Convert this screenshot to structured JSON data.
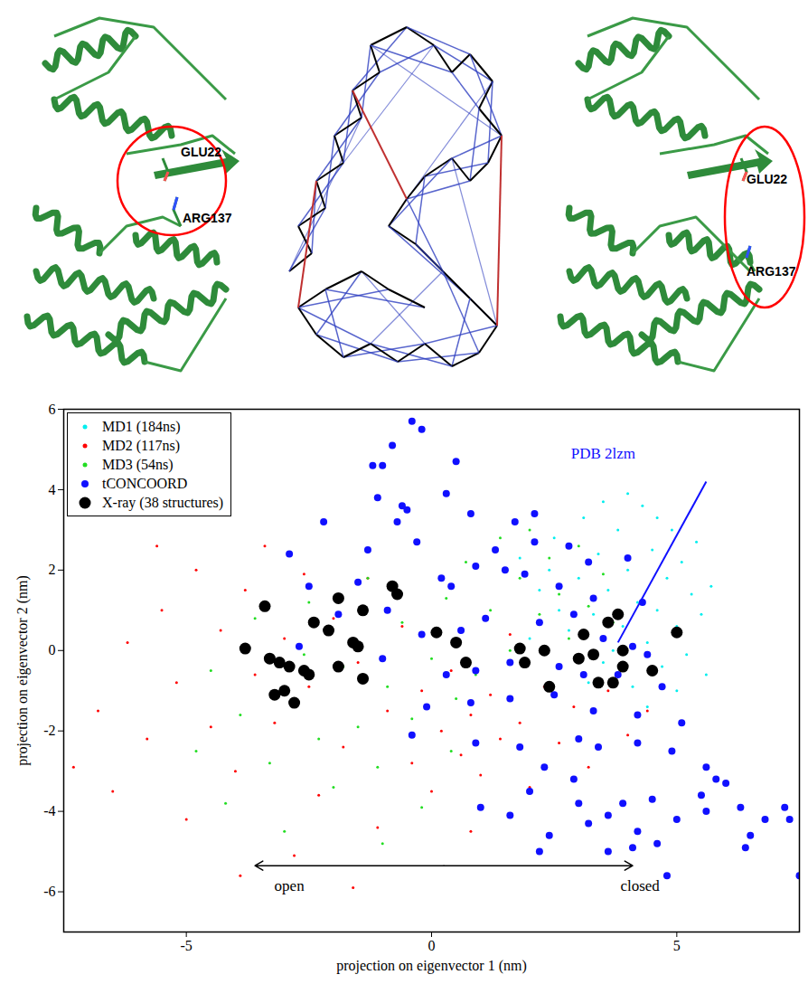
{
  "chart_data": {
    "type": "scatter",
    "xlabel": "projection on eigenvector 1 (nm)",
    "ylabel": "projection on eigenvector 2 (nm)",
    "xlim": [
      -7.5,
      7.5
    ],
    "ylim": [
      -7,
      6
    ],
    "xticks": [
      -5,
      0,
      5
    ],
    "yticks": [
      -6,
      -4,
      -2,
      0,
      2,
      4,
      6
    ],
    "grid": false,
    "legend": "top-left",
    "series": [
      {
        "name": "MD2 (117ns)",
        "color": "#ff0000",
        "marker": "point",
        "x": [
          -7.3,
          -6.8,
          -6.5,
          -6.2,
          -5.8,
          -5.5,
          -5.2,
          -5.0,
          -4.8,
          -4.5,
          -4.3,
          -4.0,
          -3.8,
          -3.6,
          -3.4,
          -3.2,
          -3.0,
          -2.8,
          -2.6,
          -2.5,
          -2.3,
          -2.0,
          -1.8,
          -1.5,
          -1.3,
          -1.1,
          -0.9,
          -0.6,
          -0.4,
          -0.2,
          0.0,
          0.2,
          0.4,
          0.6,
          0.8,
          1.0,
          1.2,
          1.4,
          1.6,
          1.8,
          2.0,
          2.3,
          2.6,
          2.9,
          3.2,
          3.6,
          4.0,
          4.4,
          -3.9,
          -1.6,
          0.8,
          -5.6
        ],
        "y": [
          -2.9,
          -1.5,
          -3.5,
          0.2,
          -2.2,
          1.0,
          -0.8,
          -4.2,
          2.0,
          -1.9,
          0.5,
          -3.0,
          1.5,
          -0.6,
          2.6,
          -1.8,
          0.3,
          -5.1,
          1.9,
          -0.9,
          -3.6,
          0.8,
          -2.4,
          -0.3,
          1.8,
          -4.4,
          -1.5,
          0.6,
          -2.8,
          -1.0,
          -3.5,
          -2.0,
          -0.5,
          -2.6,
          -1.6,
          -3.1,
          -1.1,
          -2.2,
          0.4,
          -1.8,
          -3.4,
          -0.9,
          -2.3,
          -1.4,
          -2.9,
          -1.0,
          -2.1,
          -1.5,
          -5.6,
          -5.9,
          -4.5,
          2.6
        ]
      },
      {
        "name": "MD3 (54ns)",
        "color": "#22dd22",
        "marker": "point",
        "x": [
          -4.8,
          -4.5,
          -4.2,
          -3.9,
          -3.6,
          -3.3,
          -3.0,
          -2.8,
          -2.5,
          -2.3,
          -2.0,
          -1.8,
          -1.5,
          -1.3,
          -1.1,
          -0.9,
          -0.6,
          -0.4,
          -0.2,
          0.0,
          0.3,
          0.5,
          0.7,
          0.9,
          1.2,
          1.4,
          1.6,
          1.8,
          2.0,
          2.2,
          2.4,
          2.6,
          2.8,
          3.0,
          3.2,
          3.5,
          3.7,
          -1.0,
          -2.6,
          0.4
        ],
        "y": [
          -2.5,
          -0.5,
          -3.8,
          -1.6,
          0.8,
          -2.8,
          -4.5,
          -1.2,
          1.2,
          -2.2,
          -3.4,
          -0.4,
          -1.9,
          1.8,
          -2.9,
          -0.9,
          0.7,
          -1.7,
          -3.9,
          -0.2,
          1.3,
          -1.2,
          2.2,
          -0.6,
          1.0,
          2.8,
          0.0,
          1.8,
          3.0,
          0.9,
          2.3,
          1.4,
          0.3,
          2.6,
          1.1,
          1.9,
          0.7,
          -4.8,
          -0.1,
          -2.5
        ]
      },
      {
        "name": "MD1 (184ns)",
        "color": "#00eeee",
        "marker": "point",
        "x": [
          1.8,
          2.2,
          2.5,
          2.8,
          3.0,
          3.1,
          3.3,
          3.4,
          3.5,
          3.6,
          3.8,
          3.9,
          4.0,
          4.1,
          4.2,
          4.3,
          4.4,
          4.5,
          4.6,
          4.7,
          4.8,
          4.9,
          5.0,
          5.1,
          5.2,
          5.3,
          5.4,
          5.5,
          5.6,
          5.7,
          3.7,
          4.0,
          2.6,
          3.2,
          4.4,
          2.0,
          4.6,
          5.0,
          3.5,
          2.4
        ],
        "y": [
          2.3,
          1.5,
          2.8,
          0.5,
          1.8,
          3.3,
          0.9,
          2.4,
          -0.3,
          1.5,
          3.0,
          0.6,
          2.0,
          -0.9,
          1.2,
          3.6,
          0.2,
          2.5,
          1.0,
          -0.4,
          1.8,
          3.0,
          0.6,
          2.2,
          -0.1,
          1.4,
          2.7,
          0.9,
          -0.6,
          1.6,
          0.0,
          3.9,
          1.0,
          -0.8,
          -1.4,
          0.3,
          3.3,
          -1.0,
          3.7,
          2.0
        ]
      },
      {
        "name": "tCONCOORD",
        "color": "#1010ff",
        "marker": "circle",
        "x": [
          -1.2,
          -1.0,
          -0.4,
          -0.2,
          -0.8,
          -0.6,
          -0.7,
          0.5,
          -1.1,
          -0.5,
          0.3,
          0.8,
          1.7,
          2.1,
          -2.2,
          -2.9,
          -1.3,
          -0.3,
          1.3,
          1.5,
          2.1,
          2.8,
          3.2,
          4.0,
          -2.5,
          -1.5,
          0.2,
          0.4,
          0.9,
          1.9,
          2.6,
          3.3,
          4.3,
          -1.9,
          -0.9,
          -0.2,
          0.6,
          1.1,
          2.2,
          2.9,
          3.5,
          4.1,
          4.4,
          -2.7,
          -1.0,
          0.3,
          0.9,
          1.6,
          2.6,
          3.1,
          3.8,
          4.7,
          -0.1,
          0.8,
          1.6,
          2.5,
          3.3,
          4.2,
          5.1,
          -0.4,
          0.9,
          1.8,
          2.3,
          3.0,
          3.4,
          4.2,
          4.9,
          5.6,
          6.0,
          1.0,
          1.6,
          2.0,
          2.4,
          2.2,
          3.0,
          3.2,
          3.6,
          3.9,
          4.1,
          4.2,
          4.6,
          4.8,
          4.5,
          5.0,
          5.5,
          5.6,
          5.8,
          6.4,
          6.5,
          6.8,
          7.2,
          7.3,
          7.5,
          6.3,
          3.6,
          2.9
        ],
        "y": [
          4.6,
          4.6,
          5.7,
          5.5,
          5.1,
          3.6,
          3.2,
          4.7,
          3.8,
          3.5,
          3.9,
          3.4,
          3.2,
          3.4,
          3.2,
          2.4,
          2.5,
          2.7,
          2.5,
          2.0,
          2.7,
          2.6,
          2.2,
          2.3,
          1.6,
          1.7,
          1.8,
          1.6,
          2.1,
          1.9,
          1.6,
          1.3,
          1.2,
          0.9,
          1.0,
          0.4,
          0.5,
          0.8,
          0.7,
          0.9,
          0.3,
          0.1,
          -0.1,
          0.1,
          -0.2,
          -0.6,
          -0.5,
          -0.3,
          -0.4,
          -0.6,
          -0.6,
          -0.9,
          -1.4,
          -1.3,
          -1.2,
          -1.1,
          -1.5,
          -1.6,
          -1.8,
          -2.1,
          -2.3,
          -2.4,
          -2.9,
          -2.2,
          -2.4,
          -2.3,
          -2.5,
          -2.9,
          -3.3,
          -3.9,
          -4.1,
          -3.5,
          -4.6,
          -5.0,
          -3.8,
          -4.3,
          -4.1,
          -3.8,
          -4.9,
          -4.5,
          -4.8,
          -5.6,
          -3.7,
          -4.2,
          -3.6,
          -4.0,
          -3.2,
          -4.9,
          -4.6,
          -4.2,
          -3.9,
          -4.2,
          -5.6,
          -3.9,
          -5.0,
          -3.2
        ]
      },
      {
        "name": "X-ray (38 structures)",
        "color": "#000000",
        "marker": "large_circle",
        "x": [
          -3.8,
          -3.4,
          -3.3,
          -3.1,
          -3.2,
          -3.0,
          -2.9,
          -2.8,
          -2.6,
          -2.5,
          -2.4,
          -2.1,
          -1.9,
          -1.9,
          -1.6,
          -1.5,
          -1.4,
          -1.4,
          -0.8,
          -0.7,
          0.1,
          0.5,
          0.7,
          1.8,
          1.9,
          2.3,
          2.4,
          3.0,
          3.1,
          3.4,
          3.6,
          3.7,
          3.8,
          3.9,
          3.9,
          4.5,
          5.0,
          3.3
        ],
        "y": [
          0.05,
          1.1,
          -0.2,
          -0.3,
          -1.1,
          -1.0,
          -0.4,
          -1.3,
          -0.5,
          -0.6,
          0.7,
          0.5,
          1.3,
          -0.4,
          0.2,
          0.1,
          1.0,
          -0.7,
          1.6,
          1.4,
          0.45,
          0.2,
          -0.3,
          0.05,
          -0.3,
          0.0,
          -0.9,
          -0.2,
          0.4,
          -0.8,
          0.7,
          -0.8,
          0.9,
          0.0,
          -0.4,
          -0.5,
          0.45,
          -0.1
        ]
      }
    ],
    "annotations": [
      {
        "text": "PDB 2lzm",
        "x": 3.5,
        "y": 4.9,
        "color": "#1010ff",
        "line": {
          "x1": 5.6,
          "y1": 4.2,
          "x2": 3.8,
          "y2": 0.2
        }
      },
      {
        "text": "open",
        "x": -2.9,
        "y": -5.85,
        "color": "#000000"
      },
      {
        "text": "closed",
        "x": 4.25,
        "y": -5.85,
        "color": "#000000"
      }
    ],
    "span_arrow": {
      "x1": -3.6,
      "x2": 4.1,
      "y": -5.35
    }
  },
  "structures": {
    "left": {
      "labels": [
        "GLU22",
        "ARG137"
      ]
    },
    "right": {
      "labels": [
        "GLU22",
        "ARG137"
      ]
    }
  }
}
